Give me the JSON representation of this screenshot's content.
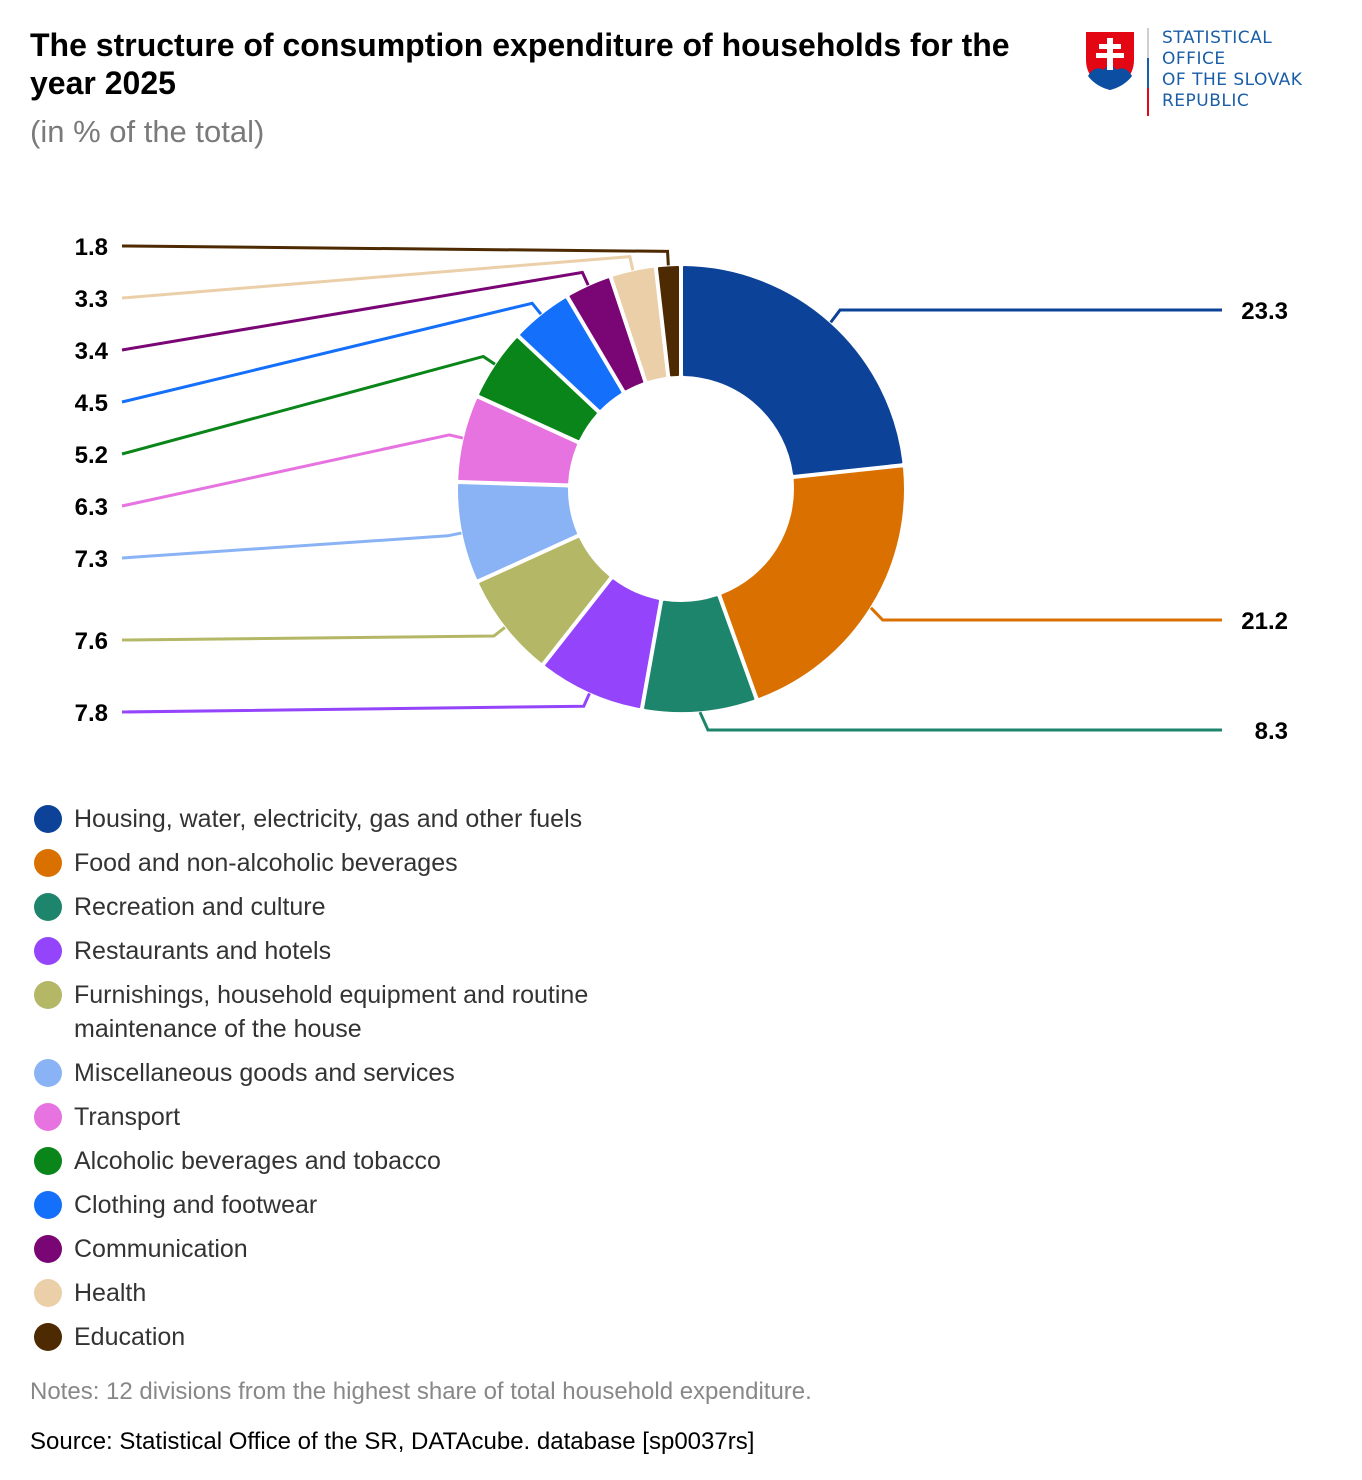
{
  "header": {
    "title": "The structure of consumption expenditure of households for the year 2025",
    "subtitle": "(in % of the total)"
  },
  "logo": {
    "lines": [
      "STATISTICAL",
      "OFFICE",
      "OF THE SLOVAK",
      "REPUBLIC"
    ],
    "colors": {
      "red": "#e30613",
      "blue": "#0b4ea2",
      "white": "#ffffff",
      "text": "#1a5ea8"
    }
  },
  "chart_data": {
    "type": "pie",
    "variant": "donut",
    "title": "The structure of consumption expenditure of households for the year 2025",
    "subtitle": "(in % of the total)",
    "unit": "%",
    "start": "top",
    "direction": "clockwise",
    "legend_position": "bottom-left",
    "slices": [
      {
        "label": "Housing, water, electricity, gas and other fuels",
        "value": 23.3,
        "color": "#0c4298",
        "label_side": "right"
      },
      {
        "label": "Food and non-alcoholic beverages",
        "value": 21.2,
        "color": "#d97000",
        "label_side": "right"
      },
      {
        "label": "Recreation and culture",
        "value": 8.3,
        "color": "#1e856d",
        "label_side": "right"
      },
      {
        "label": "Restaurants and hotels",
        "value": 7.8,
        "color": "#9445fb",
        "label_side": "left"
      },
      {
        "label": "Furnishings, household equipment and routine maintenance of the house",
        "value": 7.6,
        "color": "#b4b766",
        "label_side": "left"
      },
      {
        "label": "Miscellaneous goods and services",
        "value": 7.3,
        "color": "#89b3f5",
        "label_side": "left"
      },
      {
        "label": "Transport",
        "value": 6.3,
        "color": "#e673e0",
        "label_side": "left"
      },
      {
        "label": "Alcoholic beverages and tobacco",
        "value": 5.2,
        "color": "#0a8519",
        "label_side": "left"
      },
      {
        "label": "Clothing and footwear",
        "value": 4.5,
        "color": "#146ffa",
        "label_side": "left"
      },
      {
        "label": "Communication",
        "value": 3.4,
        "color": "#7a0574",
        "label_side": "left"
      },
      {
        "label": "Health",
        "value": 3.3,
        "color": "#ebcfa8",
        "label_side": "left"
      },
      {
        "label": "Education",
        "value": 1.8,
        "color": "#4d2a01",
        "label_side": "left"
      }
    ]
  },
  "footer": {
    "notes": "Notes: 12 divisions from the highest share of total household expenditure.",
    "source": "Source: Statistical Office of the SR, DATAcube. database [sp0037rs]"
  }
}
